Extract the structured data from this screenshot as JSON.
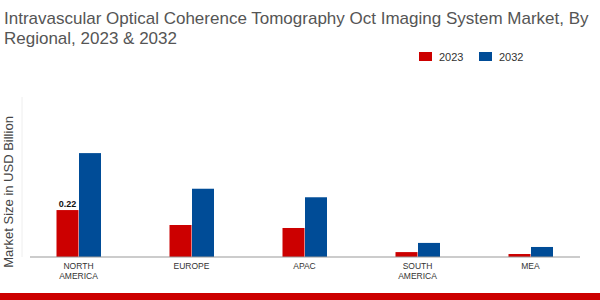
{
  "chart_data": {
    "type": "bar",
    "title": "Intravascular Optical Coherence Tomography Oct Imaging System Market, By Regional, 2023 & 2032",
    "y_label": "Market Size in USD Billion",
    "categories": [
      "NORTH AMERICA",
      "EUROPE",
      "APAC",
      "SOUTH AMERICA",
      "MEA"
    ],
    "series": [
      {
        "name": "2023",
        "color": "#cc0000",
        "values": [
          0.22,
          0.15,
          0.136,
          0.023,
          0.014
        ],
        "value_labels": [
          "0.22",
          null,
          null,
          null,
          null
        ]
      },
      {
        "name": "2032",
        "color": "#004c97",
        "values": [
          0.487,
          0.32,
          0.28,
          0.066,
          0.047
        ]
      }
    ],
    "ylim": [
      0,
      0.75
    ],
    "yticks": [],
    "grid": false,
    "legend": "top-right",
    "data_labels": true,
    "tick_labels": "x"
  }
}
